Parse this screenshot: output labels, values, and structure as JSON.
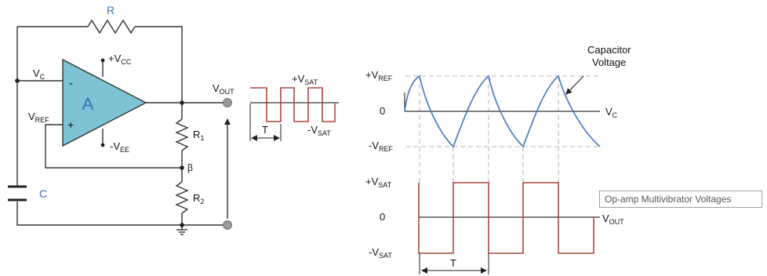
{
  "circuit": {
    "resistor_r": "R",
    "opamp_label": "A",
    "minus_sign": "-",
    "plus_sign": "+",
    "vcc": {
      "prefix": "+V",
      "sub": "CC"
    },
    "vee": {
      "prefix": "-V",
      "sub": "EE"
    },
    "vc": {
      "prefix": "V",
      "sub": "C"
    },
    "vref": {
      "prefix": "V",
      "sub": "REF"
    },
    "vout": {
      "prefix": "V",
      "sub": "OUT"
    },
    "r1": {
      "prefix": "R",
      "sub": "1"
    },
    "r2": {
      "prefix": "R",
      "sub": "2"
    },
    "beta": "β",
    "capacitor": "C"
  },
  "small_wave": {
    "plus_vsat": {
      "prefix": "+V",
      "sub": "SAT"
    },
    "minus_vsat": {
      "prefix": "-V",
      "sub": "SAT"
    },
    "period": "T"
  },
  "capacitor_graph": {
    "plus_vref": {
      "prefix": "+V",
      "sub": "REF"
    },
    "zero": "0",
    "minus_vref": {
      "prefix": "-V",
      "sub": "REF"
    },
    "axis_label": {
      "prefix": "V",
      "sub": "C"
    },
    "annotation_line1": "Capacitor",
    "annotation_line2": "Voltage"
  },
  "output_graph": {
    "plus_vsat": {
      "prefix": "+V",
      "sub": "SAT"
    },
    "zero": "0",
    "minus_vsat": {
      "prefix": "-V",
      "sub": "SAT"
    },
    "axis_label": {
      "prefix": "V",
      "sub": "OUT"
    },
    "period": "T"
  },
  "tooltip": "Op-amp Multivibrator Voltages",
  "colors": {
    "wire": "#333333",
    "opamp_fill": "#7ec3d3",
    "label_blue": "#3a6fb5",
    "capacitor_wave": "#4a7dbf",
    "square_wave": "#a8473c",
    "dashed": "#b8b8b8",
    "terminal": "#9a9a9a"
  }
}
